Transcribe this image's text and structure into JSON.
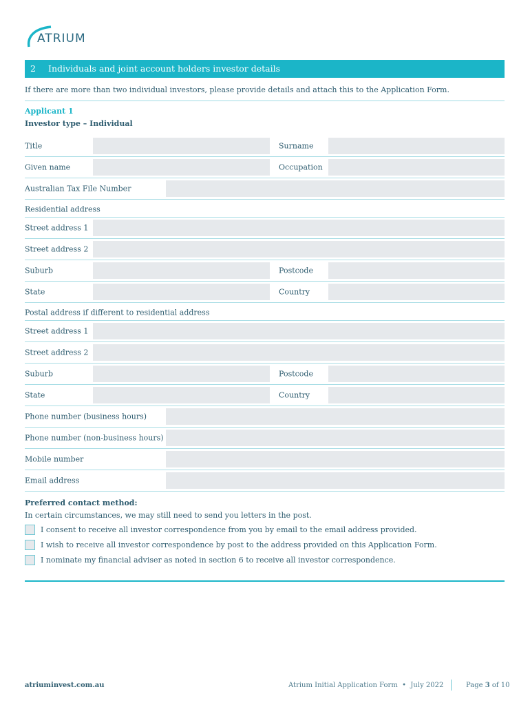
{
  "logo": {
    "text": "ATRIUM"
  },
  "section": {
    "number": "2",
    "title": "Individuals and joint account holders investor details"
  },
  "intro": "If there are more than two individual investors, please provide details and attach this to the Application Form.",
  "applicant": "Applicant 1",
  "investor_type": "Investor type – Individual",
  "fields": {
    "title": "Title",
    "surname": "Surname",
    "given_name": "Given name",
    "occupation": "Occupation",
    "tfn": "Australian Tax File Number",
    "residential": "Residential address",
    "street1": "Street address 1",
    "street2": "Street address 2",
    "suburb": "Suburb",
    "postcode": "Postcode",
    "state": "State",
    "country": "Country",
    "postal": "Postal address if different to residential address",
    "phone_bh": "Phone number (business hours)",
    "phone_nbh": "Phone number (non-business hours)",
    "mobile": "Mobile number",
    "email": "Email address"
  },
  "contact": {
    "heading": "Preferred contact method:",
    "subtext": "In certain circumstances, we may still need to send you letters in the post.",
    "options": [
      "I consent to receive all investor correspondence from you by email to the email address provided.",
      "I wish to receive all investor correspondence by post to the address provided on this Application Form.",
      "I nominate my financial adviser as noted in section 6 to receive all investor correspondence."
    ]
  },
  "footer": {
    "site": "atriuminvest.com.au",
    "doc": "Atrium Initial Application Form  •  July 2022",
    "page_prefix": "Page ",
    "page_num": "3",
    "page_suffix": " of 10"
  },
  "colors": {
    "accent": "#1bb5c8",
    "text": "#2f5d70",
    "field": "#e6e9ec"
  }
}
